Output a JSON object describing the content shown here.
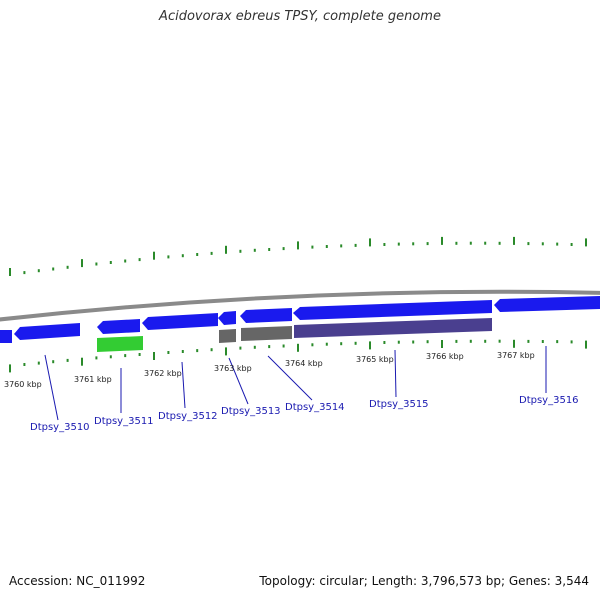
{
  "title": "Acidovorax ebreus TPSY, complete genome",
  "footer": {
    "accession": "Accession: NC_011992",
    "summary": "Topology: circular; Length: 3,796,573 bp; Genes: 3,544"
  },
  "colors": {
    "backbone": "#8a8a8a",
    "cds": "#1a1aee",
    "rna": "#33cc33",
    "grey_feature": "#666666",
    "purple_feature": "#4a3f8f",
    "tick": "#2a8a2a",
    "label": "#1a1ab0"
  },
  "kbp_labels": [
    "3760 kbp",
    "3761 kbp",
    "3762 kbp",
    "3763 kbp",
    "3764 kbp",
    "3765 kbp",
    "3766 kbp",
    "3767 kbp"
  ],
  "gene_labels": [
    "Dtpsy_3510",
    "Dtpsy_3511",
    "Dtpsy_3512",
    "Dtpsy_3513",
    "Dtpsy_3514",
    "Dtpsy_3515",
    "Dtpsy_3516"
  ]
}
